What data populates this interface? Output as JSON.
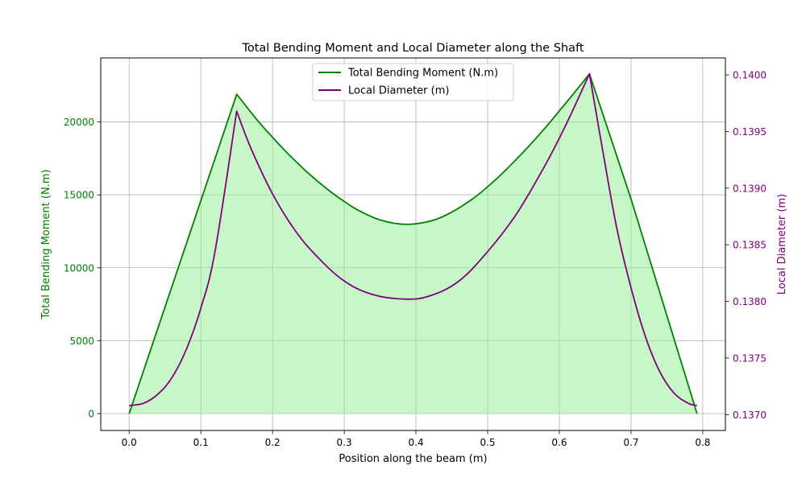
{
  "chart_data": {
    "type": "line",
    "title": "Total Bending Moment and Local Diameter along the Shaft",
    "xlabel": "Position along the beam (m)",
    "xlim": [
      -0.0396,
      0.8316
    ],
    "xticks": [
      0.0,
      0.1,
      0.2,
      0.3,
      0.4,
      0.5,
      0.6,
      0.7,
      0.8
    ],
    "xtick_labels": [
      "0.0",
      "0.1",
      "0.2",
      "0.3",
      "0.4",
      "0.5",
      "0.6",
      "0.7",
      "0.8"
    ],
    "grid": true,
    "legend_position": "upper center",
    "left_axis": {
      "label": "Total Bending Moment (N.m)",
      "color": "#008000",
      "ylim": [
        -1160,
        24390
      ],
      "ticks": [
        0,
        5000,
        10000,
        15000,
        20000
      ],
      "tick_labels": [
        "0",
        "5000",
        "10000",
        "15000",
        "20000"
      ]
    },
    "right_axis": {
      "label": "Local Diameter (m)",
      "color": "#800080",
      "ylim": [
        0.13686,
        0.14015
      ],
      "ticks": [
        0.137,
        0.1375,
        0.138,
        0.1385,
        0.139,
        0.1395,
        0.14
      ],
      "tick_labels": [
        "0.1370",
        "0.1375",
        "0.1380",
        "0.1385",
        "0.1390",
        "0.1395",
        "0.1400"
      ]
    },
    "series": [
      {
        "name": "Total Bending Moment (N.m)",
        "axis": "left",
        "color": "#008000",
        "fill_color": "#90ee90",
        "fill_alpha": 0.5,
        "x": [
          0.0,
          0.15,
          0.18,
          0.2,
          0.22,
          0.25,
          0.28,
          0.3,
          0.32,
          0.35,
          0.385,
          0.42,
          0.45,
          0.48,
          0.5,
          0.52,
          0.55,
          0.58,
          0.6,
          0.62,
          0.642,
          0.7,
          0.792
        ],
        "values": [
          0,
          21900,
          20050,
          18950,
          17900,
          16480,
          15250,
          14550,
          13930,
          13280,
          12980,
          13200,
          13820,
          14760,
          15560,
          16450,
          17950,
          19580,
          20760,
          21950,
          23300,
          14720,
          0
        ]
      },
      {
        "name": "Local Diameter (m)",
        "axis": "right",
        "color": "#800080",
        "x": [
          0.0,
          0.02,
          0.04,
          0.06,
          0.08,
          0.1,
          0.12,
          0.15,
          0.17,
          0.2,
          0.23,
          0.26,
          0.3,
          0.34,
          0.385,
          0.42,
          0.46,
          0.5,
          0.54,
          0.58,
          0.61,
          0.642,
          0.66,
          0.68,
          0.7,
          0.72,
          0.74,
          0.76,
          0.78,
          0.792
        ],
        "values": [
          0.13708,
          0.1371,
          0.13718,
          0.13733,
          0.13758,
          0.13794,
          0.13845,
          0.13968,
          0.13935,
          0.13895,
          0.13864,
          0.13841,
          0.13818,
          0.13806,
          0.13802,
          0.13805,
          0.13818,
          0.13844,
          0.13877,
          0.1392,
          0.13957,
          0.14001,
          0.13935,
          0.13865,
          0.13812,
          0.13769,
          0.13738,
          0.13719,
          0.1371,
          0.13708
        ]
      }
    ]
  }
}
